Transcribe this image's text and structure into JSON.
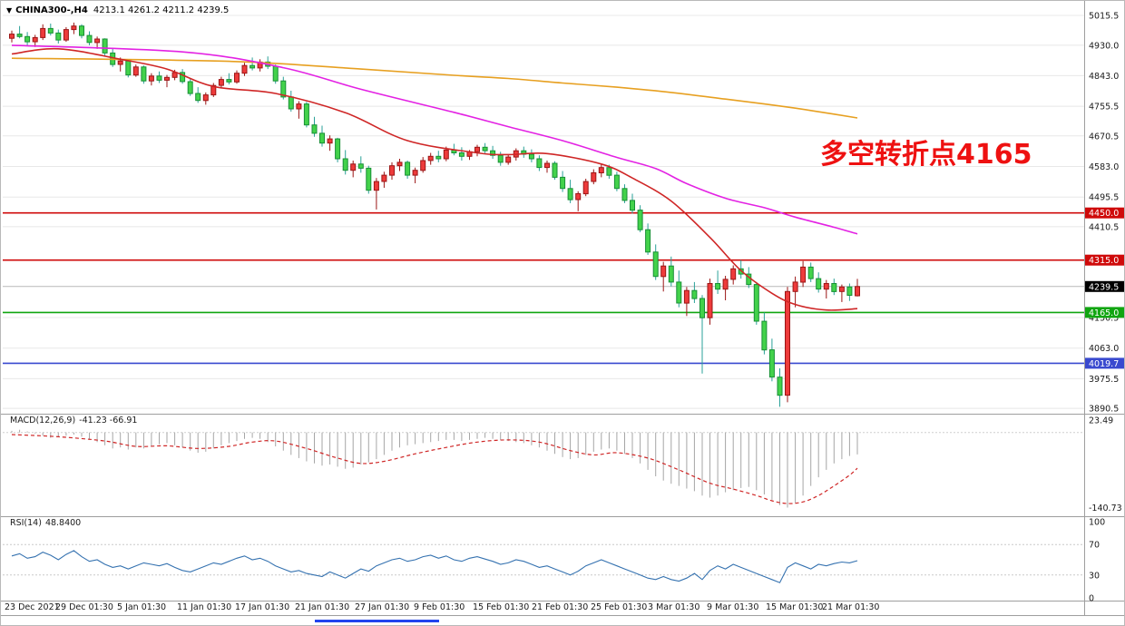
{
  "header": {
    "collapse_icon": "▼",
    "symbol": "CHINA300-,H4",
    "ohlc": "4213.1 4261.2 4211.2 4239.5"
  },
  "colors": {
    "up_fill": "#ee3b3b",
    "up_border": "#9b1515",
    "down_fill": "#43d24b",
    "down_border": "#178f35",
    "down_wick": "#2aa198",
    "grid": "#e8e8e8",
    "separator": "#9e9e9e",
    "axis_text": "#1a1a1a",
    "price_tag_bg": "#000000",
    "macd_hist": "#a6a6a6",
    "macd_signal": "#cf2626",
    "rsi_line": "#3572b0",
    "scroll_thumb": "#2244ee"
  },
  "time_axis": {
    "labels": [
      "23 Dec 2021",
      "29 Dec 01:30",
      "5 Jan 01:30",
      "11 Jan 01:30",
      "17 Jan 01:30",
      "21 Jan 01:30",
      "27 Jan 01:30",
      "9 Feb 01:30",
      "15 Feb 01:30",
      "21 Feb 01:30",
      "25 Feb 01:30",
      "3 Mar 01:30",
      "9 Mar 01:30",
      "15 Mar 01:30",
      "21 Mar 01:30"
    ]
  },
  "chart_data": [
    {
      "type": "candlestick",
      "title": "CHINA300-,H4",
      "timeframe": "H4",
      "ohlc_current": {
        "open": 4213.1,
        "high": 4261.2,
        "low": 4211.2,
        "close": 4239.5
      },
      "ylim": [
        3868,
        5040
      ],
      "y_ticks": [
        5015.5,
        4930.0,
        4843.0,
        4755.5,
        4670.5,
        4583.0,
        4495.5,
        4410.5,
        4150.5,
        4063.0,
        3975.5,
        3890.5
      ],
      "hlines": [
        {
          "value": 4450.0,
          "label": "4450.0",
          "color": "#cf0a0a"
        },
        {
          "value": 4315.0,
          "label": "4315.0",
          "color": "#cf0a0a"
        },
        {
          "value": 4165.0,
          "label": "4165.0",
          "color": "#10a510"
        },
        {
          "value": 4019.7,
          "label": "4019.7",
          "color": "#3949cf"
        }
      ],
      "bid_line": {
        "value": 4239.5,
        "label": "4239.5"
      },
      "annotation": {
        "text": "多空转折点4165",
        "color": "#ee1111"
      },
      "candles": [
        [
          4950,
          4972,
          4938,
          4962
        ],
        [
          4962,
          4985,
          4950,
          4955
        ],
        [
          4955,
          4968,
          4930,
          4940
        ],
        [
          4940,
          4960,
          4925,
          4952
        ],
        [
          4952,
          4990,
          4945,
          4978
        ],
        [
          4978,
          4992,
          4958,
          4965
        ],
        [
          4965,
          4975,
          4935,
          4945
        ],
        [
          4945,
          4982,
          4940,
          4975
        ],
        [
          4975,
          4995,
          4962,
          4985
        ],
        [
          4985,
          4990,
          4950,
          4958
        ],
        [
          4958,
          4970,
          4930,
          4938
        ],
        [
          4938,
          4955,
          4920,
          4948
        ],
        [
          4948,
          4950,
          4900,
          4908
        ],
        [
          4908,
          4920,
          4868,
          4875
        ],
        [
          4875,
          4895,
          4855,
          4885
        ],
        [
          4885,
          4890,
          4838,
          4845
        ],
        [
          4845,
          4875,
          4840,
          4868
        ],
        [
          4868,
          4872,
          4820,
          4828
        ],
        [
          4828,
          4850,
          4815,
          4842
        ],
        [
          4842,
          4855,
          4822,
          4830
        ],
        [
          4830,
          4845,
          4810,
          4838
        ],
        [
          4838,
          4860,
          4830,
          4852
        ],
        [
          4852,
          4862,
          4820,
          4826
        ],
        [
          4826,
          4835,
          4785,
          4792
        ],
        [
          4792,
          4810,
          4765,
          4772
        ],
        [
          4772,
          4795,
          4760,
          4788
        ],
        [
          4788,
          4822,
          4782,
          4815
        ],
        [
          4815,
          4840,
          4808,
          4832
        ],
        [
          4832,
          4850,
          4818,
          4825
        ],
        [
          4825,
          4858,
          4820,
          4850
        ],
        [
          4850,
          4880,
          4842,
          4872
        ],
        [
          4872,
          4895,
          4858,
          4865
        ],
        [
          4865,
          4890,
          4855,
          4882
        ],
        [
          4882,
          4898,
          4862,
          4870
        ],
        [
          4870,
          4875,
          4820,
          4828
        ],
        [
          4828,
          4840,
          4775,
          4782
        ],
        [
          4782,
          4800,
          4740,
          4748
        ],
        [
          4748,
          4770,
          4720,
          4762
        ],
        [
          4762,
          4768,
          4695,
          4702
        ],
        [
          4702,
          4725,
          4668,
          4678
        ],
        [
          4678,
          4700,
          4640,
          4650
        ],
        [
          4650,
          4672,
          4628,
          4662
        ],
        [
          4662,
          4665,
          4595,
          4605
        ],
        [
          4605,
          4630,
          4560,
          4572
        ],
        [
          4572,
          4600,
          4552,
          4590
        ],
        [
          4590,
          4612,
          4565,
          4578
        ],
        [
          4578,
          4585,
          4505,
          4515
        ],
        [
          4515,
          4550,
          4460,
          4540
        ],
        [
          4540,
          4568,
          4522,
          4558
        ],
        [
          4558,
          4595,
          4545,
          4585
        ],
        [
          4585,
          4605,
          4570,
          4595
        ],
        [
          4595,
          4600,
          4548,
          4558
        ],
        [
          4558,
          4580,
          4535,
          4572
        ],
        [
          4572,
          4610,
          4565,
          4600
        ],
        [
          4600,
          4622,
          4588,
          4612
        ],
        [
          4612,
          4628,
          4595,
          4605
        ],
        [
          4605,
          4640,
          4598,
          4630
        ],
        [
          4630,
          4648,
          4615,
          4622
        ],
        [
          4622,
          4638,
          4600,
          4612
        ],
        [
          4612,
          4630,
          4602,
          4625
        ],
        [
          4625,
          4645,
          4612,
          4638
        ],
        [
          4638,
          4650,
          4618,
          4628
        ],
        [
          4628,
          4642,
          4605,
          4615
        ],
        [
          4615,
          4625,
          4585,
          4595
        ],
        [
          4595,
          4618,
          4588,
          4610
        ],
        [
          4610,
          4635,
          4600,
          4628
        ],
        [
          4628,
          4640,
          4608,
          4618
        ],
        [
          4618,
          4632,
          4595,
          4605
        ],
        [
          4605,
          4615,
          4570,
          4580
        ],
        [
          4580,
          4600,
          4565,
          4592
        ],
        [
          4592,
          4598,
          4545,
          4552
        ],
        [
          4552,
          4570,
          4510,
          4520
        ],
        [
          4520,
          4545,
          4478,
          4488
        ],
        [
          4488,
          4512,
          4455,
          4505
        ],
        [
          4505,
          4548,
          4498,
          4540
        ],
        [
          4540,
          4575,
          4532,
          4565
        ],
        [
          4565,
          4590,
          4552,
          4580
        ],
        [
          4580,
          4588,
          4548,
          4558
        ],
        [
          4558,
          4568,
          4512,
          4520
        ],
        [
          4520,
          4532,
          4478,
          4486
        ],
        [
          4486,
          4505,
          4448,
          4458
        ],
        [
          4458,
          4472,
          4395,
          4402
        ],
        [
          4402,
          4420,
          4330,
          4338
        ],
        [
          4338,
          4360,
          4258,
          4268
        ],
        [
          4268,
          4310,
          4225,
          4298
        ],
        [
          4298,
          4325,
          4240,
          4252
        ],
        [
          4252,
          4285,
          4180,
          4192
        ],
        [
          4192,
          4238,
          4155,
          4228
        ],
        [
          4228,
          4252,
          4192,
          4205
        ],
        [
          4205,
          4215,
          3990,
          4150
        ],
        [
          4150,
          4262,
          4130,
          4248
        ],
        [
          4248,
          4285,
          4218,
          4232
        ],
        [
          4232,
          4270,
          4200,
          4260
        ],
        [
          4260,
          4300,
          4245,
          4290
        ],
        [
          4290,
          4315,
          4262,
          4275
        ],
        [
          4275,
          4295,
          4235,
          4245
        ],
        [
          4245,
          4252,
          4130,
          4140
        ],
        [
          4140,
          4165,
          4045,
          4058
        ],
        [
          4058,
          4090,
          3968,
          3980
        ],
        [
          3980,
          4005,
          3895,
          3928
        ],
        [
          3928,
          4238,
          3908,
          4225
        ],
        [
          4225,
          4268,
          4180,
          4252
        ],
        [
          4252,
          4312,
          4238,
          4295
        ],
        [
          4295,
          4308,
          4252,
          4262
        ],
        [
          4262,
          4280,
          4222,
          4232
        ],
        [
          4232,
          4258,
          4205,
          4248
        ],
        [
          4248,
          4262,
          4215,
          4225
        ],
        [
          4225,
          4245,
          4195,
          4238
        ],
        [
          4238,
          4248,
          4198,
          4214
        ],
        [
          4213.1,
          4261.2,
          4211.2,
          4239.5
        ]
      ],
      "ma_lines": [
        {
          "name": "ma-slow-orange",
          "color": "#e7a021",
          "points": [
            [
              0,
              4893
            ],
            [
              28,
              4884
            ],
            [
              45,
              4862
            ],
            [
              57,
              4844
            ],
            [
              64,
              4835
            ],
            [
              71,
              4822
            ],
            [
              78,
              4810
            ],
            [
              85,
              4795
            ],
            [
              92,
              4776
            ],
            [
              97,
              4762
            ],
            [
              101,
              4750
            ],
            [
              106,
              4733
            ],
            [
              109,
              4722
            ]
          ]
        },
        {
          "name": "ma-mid-magenta",
          "color": "#e322e3",
          "points": [
            [
              0,
              4930
            ],
            [
              22,
              4911
            ],
            [
              35,
              4866
            ],
            [
              45,
              4804
            ],
            [
              57,
              4738
            ],
            [
              64,
              4697
            ],
            [
              71,
              4657
            ],
            [
              78,
              4609
            ],
            [
              83,
              4577
            ],
            [
              87,
              4534
            ],
            [
              92,
              4492
            ],
            [
              97,
              4465
            ],
            [
              101,
              4438
            ],
            [
              106,
              4409
            ],
            [
              109,
              4390
            ]
          ]
        },
        {
          "name": "ma-fast-red",
          "color": "#cf2626",
          "points": [
            [
              0,
              4905
            ],
            [
              6,
              4920
            ],
            [
              14,
              4890
            ],
            [
              20,
              4862
            ],
            [
              26,
              4812
            ],
            [
              34,
              4792
            ],
            [
              43,
              4737
            ],
            [
              51,
              4657
            ],
            [
              60,
              4622
            ],
            [
              64,
              4617
            ],
            [
              69,
              4620
            ],
            [
              76,
              4590
            ],
            [
              80,
              4550
            ],
            [
              85,
              4484
            ],
            [
              90,
              4380
            ],
            [
              94,
              4285
            ],
            [
              98,
              4220
            ],
            [
              101,
              4188
            ],
            [
              105,
              4172
            ],
            [
              109,
              4176
            ]
          ]
        }
      ]
    },
    {
      "type": "macd",
      "label": "MACD(12,26,9)",
      "values_text": "-41.23 -66.91",
      "main_value": -41.23,
      "signal_value": -66.91,
      "ylim": [
        -150,
        30
      ],
      "y_ticks": [
        23.49,
        -140.73
      ],
      "histogram": [
        3,
        5,
        2,
        -2,
        -6,
        -10,
        -9,
        -6,
        -4,
        -8,
        -14,
        -18,
        -24,
        -30,
        -28,
        -32,
        -28,
        -30,
        -26,
        -22,
        -20,
        -24,
        -28,
        -34,
        -38,
        -36,
        -30,
        -24,
        -20,
        -16,
        -12,
        -10,
        -12,
        -18,
        -26,
        -34,
        -42,
        -48,
        -54,
        -58,
        -62,
        -60,
        -64,
        -68,
        -66,
        -60,
        -56,
        -50,
        -42,
        -34,
        -28,
        -24,
        -22,
        -20,
        -18,
        -16,
        -14,
        -14,
        -16,
        -14,
        -12,
        -10,
        -12,
        -14,
        -16,
        -18,
        -20,
        -24,
        -28,
        -34,
        -40,
        -46,
        -50,
        -48,
        -42,
        -36,
        -32,
        -30,
        -34,
        -40,
        -48,
        -58,
        -70,
        -82,
        -90,
        -96,
        -100,
        -105,
        -110,
        -118,
        -122,
        -118,
        -112,
        -108,
        -104,
        -102,
        -108,
        -116,
        -126,
        -136,
        -140.73,
        -132,
        -118,
        -100,
        -84,
        -70,
        -58,
        -50,
        -44,
        -41.23
      ],
      "signal_points": [
        [
          0,
          -4
        ],
        [
          6,
          -8
        ],
        [
          12,
          -16
        ],
        [
          16,
          -26
        ],
        [
          20,
          -25
        ],
        [
          24,
          -30
        ],
        [
          28,
          -26
        ],
        [
          31,
          -18
        ],
        [
          34,
          -16
        ],
        [
          38,
          -30
        ],
        [
          42,
          -48
        ],
        [
          45,
          -58
        ],
        [
          48,
          -54
        ],
        [
          52,
          -40
        ],
        [
          56,
          -28
        ],
        [
          60,
          -18
        ],
        [
          64,
          -14
        ],
        [
          68,
          -18
        ],
        [
          72,
          -34
        ],
        [
          75,
          -42
        ],
        [
          78,
          -38
        ],
        [
          82,
          -48
        ],
        [
          86,
          -70
        ],
        [
          90,
          -95
        ],
        [
          93,
          -106
        ],
        [
          96,
          -118
        ],
        [
          98,
          -128
        ],
        [
          100,
          -133
        ],
        [
          102,
          -130
        ],
        [
          104,
          -118
        ],
        [
          106,
          -100
        ],
        [
          108,
          -80
        ],
        [
          109,
          -66.91
        ]
      ]
    },
    {
      "type": "rsi",
      "label": "RSI(14)",
      "value_text": "48.8400",
      "value": 48.84,
      "ylim": [
        0,
        100
      ],
      "levels": [
        70,
        30
      ],
      "y_ticks": [
        100,
        70,
        30,
        0
      ],
      "values": [
        55,
        58,
        52,
        54,
        60,
        56,
        50,
        57,
        62,
        54,
        48,
        50,
        44,
        40,
        42,
        38,
        42,
        46,
        44,
        42,
        45,
        40,
        36,
        34,
        38,
        42,
        46,
        44,
        48,
        52,
        55,
        50,
        52,
        48,
        42,
        38,
        34,
        36,
        32,
        30,
        28,
        34,
        30,
        26,
        32,
        38,
        35,
        42,
        46,
        50,
        52,
        48,
        50,
        54,
        56,
        52,
        55,
        50,
        48,
        52,
        54,
        51,
        48,
        44,
        46,
        50,
        48,
        44,
        40,
        42,
        38,
        34,
        30,
        35,
        42,
        46,
        50,
        46,
        42,
        38,
        34,
        30,
        26,
        24,
        28,
        24,
        22,
        26,
        32,
        24,
        36,
        42,
        38,
        44,
        40,
        36,
        32,
        28,
        24,
        20,
        40,
        46,
        42,
        38,
        44,
        42,
        45,
        47,
        46,
        48.84
      ]
    }
  ]
}
